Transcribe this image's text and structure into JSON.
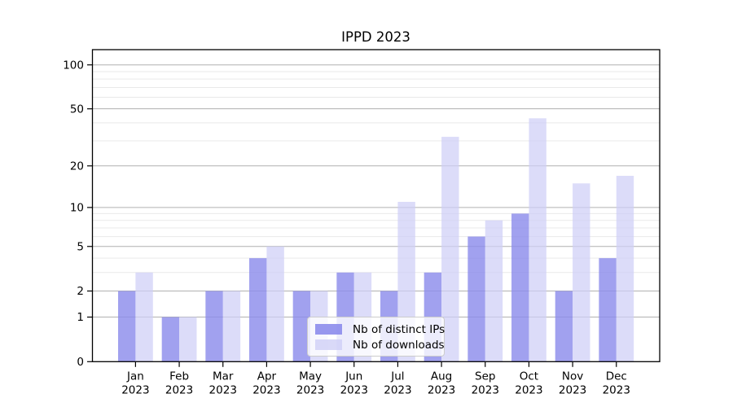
{
  "title": "IPPD 2023",
  "chart_data": {
    "type": "bar",
    "title": "IPPD 2023",
    "categories": [
      "Jan 2023",
      "Feb 2023",
      "Mar 2023",
      "Apr 2023",
      "May 2023",
      "Jun 2023",
      "Jul 2023",
      "Aug 2023",
      "Sep 2023",
      "Oct 2023",
      "Nov 2023",
      "Dec 2023"
    ],
    "series": [
      {
        "name": "Nb of distinct IPs",
        "values": [
          2,
          1,
          2,
          4,
          2,
          3,
          2,
          3,
          6,
          9,
          2,
          4
        ],
        "color": "#8c8cec"
      },
      {
        "name": "Nb of downloads",
        "values": [
          3,
          1,
          2,
          5,
          2,
          3,
          11,
          32,
          8,
          43,
          15,
          17
        ],
        "color": "#cfcff6"
      }
    ],
    "xlabel": "",
    "ylabel": "",
    "yscale": "log1p",
    "ylim": [
      0,
      127
    ],
    "yticks": [
      0,
      1,
      2,
      5,
      10,
      20,
      50,
      100
    ],
    "yticks_minor": [
      3,
      4,
      6,
      7,
      8,
      9,
      30,
      40,
      60,
      70,
      80,
      90
    ],
    "grid": true,
    "legend_position": "lower center"
  },
  "colors": {
    "background": "#ffffff",
    "major_grid": "#b0b0b0",
    "minor_grid": "#e9e9e9",
    "axis": "#000000",
    "tick_text": "#000000",
    "legend_border": "#cccccc"
  }
}
